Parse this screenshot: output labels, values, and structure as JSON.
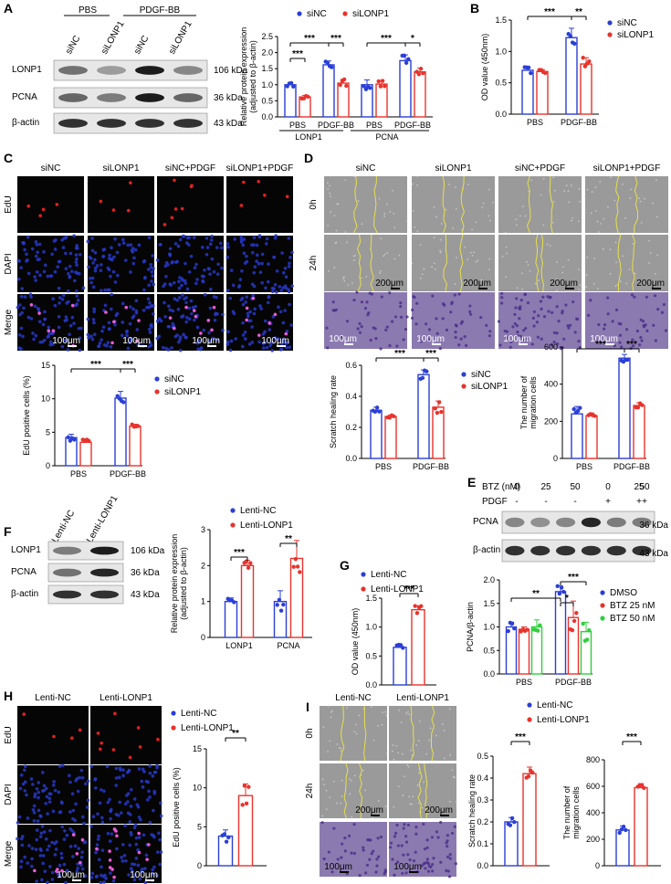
{
  "colors": {
    "blue": "#2b3fd6",
    "red": "#e8332d",
    "green": "#2fcf3c",
    "micro_bg": "#050505",
    "phase_bg": "#9a9a9a",
    "crystal_bg": "#8b7ab0",
    "scratch": "#e6e04a"
  },
  "panels": {
    "A": {
      "letter": "A",
      "groups": [
        "PBS",
        "PDGF-BB"
      ],
      "lanes": [
        "siNC",
        "siLONP1",
        "siNC",
        "siLONP1"
      ],
      "rows": [
        {
          "name": "LONP1",
          "kda": "106 kDa",
          "intensity": [
            0.55,
            0.35,
            0.95,
            0.45
          ]
        },
        {
          "name": "PCNA",
          "kda": "36 kDa",
          "intensity": [
            0.6,
            0.5,
            0.95,
            0.6
          ]
        },
        {
          "name": "β-actin",
          "kda": "43 kDa",
          "intensity": [
            0.85,
            0.85,
            0.85,
            0.85
          ]
        }
      ],
      "chart": {
        "type": "bar",
        "ylabel": "Relative protein expression",
        "ylabel2": "(adjusted to β-actin)",
        "yticks": [
          "0.0",
          "0.5",
          "1.0",
          "1.5",
          "2.0",
          "2.5"
        ],
        "ylim": [
          0,
          2.5
        ],
        "legend": [
          "siNC",
          "siLONP1"
        ],
        "categories": [
          "PBS",
          "PDGF-BB",
          "PBS",
          "PDGF-BB"
        ],
        "group_labels": [
          "LONP1",
          "PCNA"
        ],
        "series": [
          {
            "name": "siNC",
            "values": [
              1.0,
              1.62,
              1.0,
              1.75
            ],
            "errors": [
              0.06,
              0.12,
              0.15,
              0.18
            ]
          },
          {
            "name": "siLONP1",
            "values": [
              0.62,
              1.05,
              1.02,
              1.4
            ],
            "errors": [
              0.05,
              0.12,
              0.12,
              0.12
            ]
          }
        ],
        "sig": [
          "***",
          "***",
          "***",
          "***",
          "*"
        ]
      }
    },
    "B": {
      "letter": "B",
      "chart": {
        "type": "bar",
        "ylabel": "OD value (450nm)",
        "yticks": [
          "0.0",
          "0.5",
          "1.0",
          "1.5"
        ],
        "ylim": [
          0,
          1.5
        ],
        "legend": [
          "siNC",
          "siLONP1"
        ],
        "categories": [
          "PBS",
          "PDGF-BB"
        ],
        "series": [
          {
            "name": "siNC",
            "values": [
              0.7,
              1.22
            ],
            "errors": [
              0.05,
              0.15
            ]
          },
          {
            "name": "siLONP1",
            "values": [
              0.68,
              0.8
            ],
            "errors": [
              0.03,
              0.1
            ]
          }
        ],
        "sig": [
          "***",
          "**"
        ]
      }
    },
    "C": {
      "letter": "C",
      "cols": [
        "siNC",
        "siLONP1",
        "siNC+PDGF",
        "siLONP1+PDGF"
      ],
      "rows": [
        "EdU",
        "DAPI",
        "Merge"
      ],
      "scale": "100μm",
      "chart": {
        "type": "bar",
        "ylabel": "EdU positive cells (%)",
        "yticks": [
          "0",
          "5",
          "10",
          "15"
        ],
        "ylim": [
          0,
          15
        ],
        "legend": [
          "siNC",
          "siLONP1"
        ],
        "categories": [
          "PBS",
          "PDGF-BB"
        ],
        "series": [
          {
            "name": "siNC",
            "values": [
              4.2,
              10.1
            ],
            "errors": [
              0.5,
              1.0
            ]
          },
          {
            "name": "siLONP1",
            "values": [
              3.5,
              5.9
            ],
            "errors": [
              0.5,
              0.3
            ]
          }
        ],
        "sig": [
          "***",
          "***"
        ]
      }
    },
    "D": {
      "letter": "D",
      "cols": [
        "siNC",
        "siLONP1",
        "siNC+PDGF",
        "siLONP1+PDGF"
      ],
      "rows": [
        "0h",
        "24h"
      ],
      "scale_big": "200μm",
      "scale_small": "100μm",
      "chart1": {
        "type": "bar",
        "ylabel": "Scratch healing rate",
        "yticks": [
          "0.0",
          "0.2",
          "0.4",
          "0.6"
        ],
        "ylim": [
          0,
          0.6
        ],
        "legend": [
          "siNC",
          "siLONP1"
        ],
        "categories": [
          "PBS",
          "PDGF-BB"
        ],
        "series": [
          {
            "name": "siNC",
            "values": [
              0.31,
              0.54
            ],
            "errors": [
              0.02,
              0.03
            ]
          },
          {
            "name": "siLONP1",
            "values": [
              0.27,
              0.33
            ],
            "errors": [
              0.01,
              0.04
            ]
          }
        ],
        "sig": [
          "***",
          "***"
        ]
      },
      "chart2": {
        "type": "bar",
        "ylabel": "The number of",
        "ylabel2": "migration cells",
        "yticks": [
          "0",
          "200",
          "400",
          "600"
        ],
        "ylim": [
          0,
          600
        ],
        "categories": [
          "PBS",
          "PDGF-BB"
        ],
        "series": [
          {
            "name": "siNC",
            "values": [
              240,
              540
            ],
            "errors": [
              40,
              20
            ]
          },
          {
            "name": "siLONP1",
            "values": [
              230,
              285
            ],
            "errors": [
              15,
              15
            ]
          }
        ],
        "sig": [
          "***",
          "***"
        ]
      }
    },
    "E": {
      "letter": "E",
      "btz_label": "BTZ (nM)",
      "btz_values": [
        "0",
        "25",
        "50",
        "0",
        "25",
        "50"
      ],
      "pdgf_label": "PDGF",
      "pdgf_values": [
        "-",
        "-",
        "-",
        "+",
        "+",
        "+"
      ],
      "rows": [
        {
          "name": "PCNA",
          "kda": "36 kDa",
          "intensity": [
            0.45,
            0.4,
            0.45,
            0.9,
            0.5,
            0.5
          ]
        },
        {
          "name": "β-actin",
          "kda": "43 kDa",
          "intensity": [
            0.85,
            0.85,
            0.85,
            0.85,
            0.85,
            0.85
          ]
        }
      ],
      "chart": {
        "type": "bar",
        "ylabel": "PCNA/β-actin",
        "yticks": [
          "0.0",
          "0.5",
          "1.0",
          "1.5",
          "2.0"
        ],
        "ylim": [
          0,
          2.0
        ],
        "legend": [
          "DMSO",
          "BTZ 25 nM",
          "BTZ 50 nM"
        ],
        "categories": [
          "PBS",
          "PDGF-BB"
        ],
        "series": [
          {
            "name": "DMSO",
            "values": [
              1.0,
              1.75
            ],
            "errors": [
              0.1,
              0.12
            ]
          },
          {
            "name": "BTZ 25 nM",
            "values": [
              0.95,
              1.2
            ],
            "errors": [
              0.05,
              0.35
            ]
          },
          {
            "name": "BTZ 50 nM",
            "values": [
              1.0,
              0.9
            ],
            "errors": [
              0.15,
              0.2
            ]
          }
        ],
        "sig": [
          "**",
          "***",
          "*"
        ]
      }
    },
    "F": {
      "letter": "F",
      "lanes": [
        "Lenti-NC",
        "Lenti-LONP1"
      ],
      "rows": [
        {
          "name": "LONP1",
          "kda": "106 kDa",
          "intensity": [
            0.5,
            0.95
          ]
        },
        {
          "name": "PCNA",
          "kda": "36 kDa",
          "intensity": [
            0.55,
            0.9
          ]
        },
        {
          "name": "β-actin",
          "kda": "43 kDa",
          "intensity": [
            0.85,
            0.85
          ]
        }
      ],
      "chart": {
        "type": "bar",
        "ylabel": "Relative protein expression",
        "ylabel2": "(adjusted to β-actin)",
        "yticks": [
          "0",
          "1",
          "2",
          "3"
        ],
        "ylim": [
          0,
          3
        ],
        "legend": [
          "Lenti-NC",
          "Lenti-LONP1"
        ],
        "categories": [
          "LONP1",
          "PCNA"
        ],
        "series": [
          {
            "name": "Lenti-NC",
            "values": [
              1.0,
              1.0
            ],
            "errors": [
              0.1,
              0.3
            ]
          },
          {
            "name": "Lenti-LONP1",
            "values": [
              2.0,
              2.2
            ],
            "errors": [
              0.15,
              0.5
            ]
          }
        ],
        "sig": [
          "***",
          "**"
        ]
      }
    },
    "G": {
      "letter": "G",
      "chart": {
        "type": "bar",
        "ylabel": "OD value (450nm)",
        "yticks": [
          "0.0",
          "0.5",
          "1.0",
          "1.5"
        ],
        "ylim": [
          0,
          1.5
        ],
        "legend": [
          "Lenti-NC",
          "Lenti-LONP1"
        ],
        "series": [
          {
            "name": "Lenti-NC",
            "values": [
              0.65
            ],
            "errors": [
              0.05
            ]
          },
          {
            "name": "Lenti-LONP1",
            "values": [
              1.3
            ],
            "errors": [
              0.07
            ]
          }
        ],
        "sig": [
          "***"
        ]
      }
    },
    "H": {
      "letter": "H",
      "cols": [
        "Lenti-NC",
        "Lenti-LONP1"
      ],
      "rows": [
        "EdU",
        "DAPI",
        "Merge"
      ],
      "scale": "100μm",
      "chart": {
        "type": "bar",
        "ylabel": "EdU positive cells (%)",
        "yticks": [
          "0",
          "5",
          "10",
          "15"
        ],
        "ylim": [
          0,
          15
        ],
        "legend": [
          "Lenti-NC",
          "Lenti-LONP1"
        ],
        "series": [
          {
            "name": "Lenti-NC",
            "values": [
              3.8
            ],
            "errors": [
              0.8
            ]
          },
          {
            "name": "Lenti-LONP1",
            "values": [
              9.0
            ],
            "errors": [
              1.5
            ]
          }
        ],
        "sig": [
          "**"
        ]
      }
    },
    "I": {
      "letter": "I",
      "cols": [
        "Lenti-NC",
        "Lenti-LONP1"
      ],
      "rows": [
        "0h",
        "24h"
      ],
      "scale_big": "200μm",
      "scale_small": "100μm",
      "legend": [
        "Lenti-NC",
        "Lenti-LONP1"
      ],
      "chart1": {
        "type": "bar",
        "ylabel": "Scratch healing rate",
        "yticks": [
          "0.0",
          "0.1",
          "0.2",
          "0.3",
          "0.4",
          "0.5"
        ],
        "ylim": [
          0,
          0.5
        ],
        "series": [
          {
            "name": "Lenti-NC",
            "values": [
              0.2
            ],
            "errors": [
              0.02
            ]
          },
          {
            "name": "Lenti-LONP1",
            "values": [
              0.42
            ],
            "errors": [
              0.03
            ]
          }
        ],
        "sig": [
          "***"
        ]
      },
      "chart2": {
        "type": "bar",
        "ylabel": "The number of",
        "ylabel2": "migration cells",
        "yticks": [
          "0",
          "200",
          "400",
          "600",
          "800"
        ],
        "ylim": [
          0,
          800
        ],
        "series": [
          {
            "name": "Lenti-NC",
            "values": [
              270
            ],
            "errors": [
              30
            ]
          },
          {
            "name": "Lenti-LONP1",
            "values": [
              590
            ],
            "errors": [
              30
            ]
          }
        ],
        "sig": [
          "***"
        ]
      }
    }
  }
}
